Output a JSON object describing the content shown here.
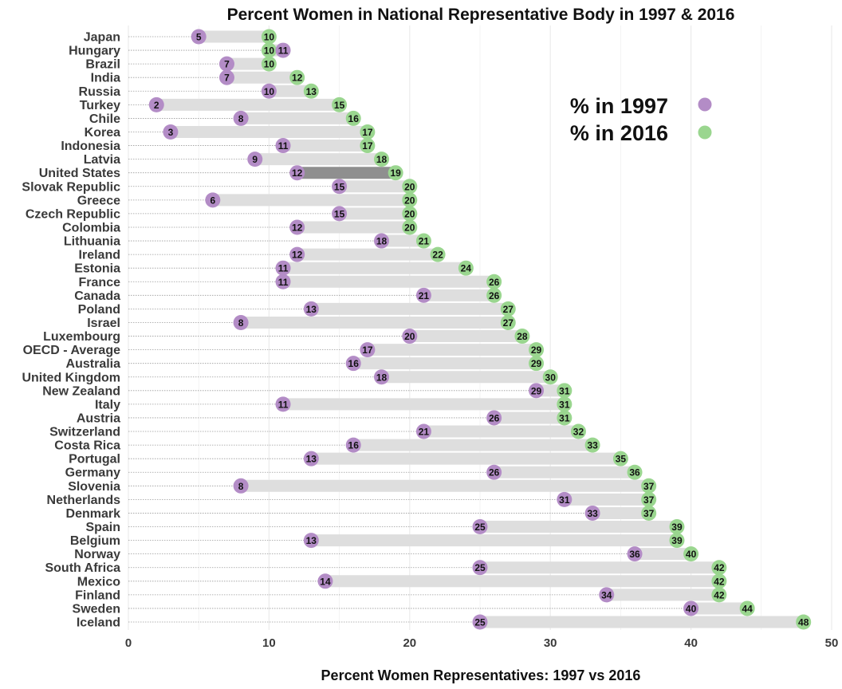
{
  "chart_data": {
    "type": "dumbbell",
    "title": "Percent Women in National Representative Body in 1997 & 2016",
    "xlabel": "Percent Women Representatives: 1997 vs 2016",
    "ylabel": "",
    "xlim": [
      0,
      50
    ],
    "xticks": [
      0,
      10,
      20,
      30,
      40,
      50
    ],
    "grid": true,
    "legend_position": "top-right",
    "highlight": "United States",
    "series": [
      {
        "name": "% in 1997",
        "color": "#b38cc6"
      },
      {
        "name": "% in 2016",
        "color": "#9ad68f"
      }
    ],
    "countries": [
      {
        "country": "Japan",
        "y1997": 5,
        "y2016": 10
      },
      {
        "country": "Hungary",
        "y1997": 11,
        "y2016": 10
      },
      {
        "country": "Brazil",
        "y1997": 7,
        "y2016": 10
      },
      {
        "country": "India",
        "y1997": 7,
        "y2016": 12
      },
      {
        "country": "Russia",
        "y1997": 10,
        "y2016": 13
      },
      {
        "country": "Turkey",
        "y1997": 2,
        "y2016": 15
      },
      {
        "country": "Chile",
        "y1997": 8,
        "y2016": 16
      },
      {
        "country": "Korea",
        "y1997": 3,
        "y2016": 17
      },
      {
        "country": "Indonesia",
        "y1997": 11,
        "y2016": 17
      },
      {
        "country": "Latvia",
        "y1997": 9,
        "y2016": 18
      },
      {
        "country": "United States",
        "y1997": 12,
        "y2016": 19
      },
      {
        "country": "Slovak Republic",
        "y1997": 15,
        "y2016": 20
      },
      {
        "country": "Greece",
        "y1997": 6,
        "y2016": 20
      },
      {
        "country": "Czech Republic",
        "y1997": 15,
        "y2016": 20
      },
      {
        "country": "Colombia",
        "y1997": 12,
        "y2016": 20
      },
      {
        "country": "Lithuania",
        "y1997": 18,
        "y2016": 21
      },
      {
        "country": "Ireland",
        "y1997": 12,
        "y2016": 22
      },
      {
        "country": "Estonia",
        "y1997": 11,
        "y2016": 24
      },
      {
        "country": "France",
        "y1997": 11,
        "y2016": 26
      },
      {
        "country": "Canada",
        "y1997": 21,
        "y2016": 26
      },
      {
        "country": "Poland",
        "y1997": 13,
        "y2016": 27
      },
      {
        "country": "Israel",
        "y1997": 8,
        "y2016": 27
      },
      {
        "country": "Luxembourg",
        "y1997": 20,
        "y2016": 28
      },
      {
        "country": "OECD - Average",
        "y1997": 17,
        "y2016": 29
      },
      {
        "country": "Australia",
        "y1997": 16,
        "y2016": 29
      },
      {
        "country": "United Kingdom",
        "y1997": 18,
        "y2016": 30
      },
      {
        "country": "New Zealand",
        "y1997": 29,
        "y2016": 31
      },
      {
        "country": "Italy",
        "y1997": 11,
        "y2016": 31
      },
      {
        "country": "Austria",
        "y1997": 26,
        "y2016": 31
      },
      {
        "country": "Switzerland",
        "y1997": 21,
        "y2016": 32
      },
      {
        "country": "Costa Rica",
        "y1997": 16,
        "y2016": 33
      },
      {
        "country": "Portugal",
        "y1997": 13,
        "y2016": 35
      },
      {
        "country": "Germany",
        "y1997": 26,
        "y2016": 36
      },
      {
        "country": "Slovenia",
        "y1997": 8,
        "y2016": 37
      },
      {
        "country": "Netherlands",
        "y1997": 31,
        "y2016": 37
      },
      {
        "country": "Denmark",
        "y1997": 33,
        "y2016": 37
      },
      {
        "country": "Spain",
        "y1997": 25,
        "y2016": 39
      },
      {
        "country": "Belgium",
        "y1997": 13,
        "y2016": 39
      },
      {
        "country": "Norway",
        "y1997": 36,
        "y2016": 40
      },
      {
        "country": "South Africa",
        "y1997": 25,
        "y2016": 42
      },
      {
        "country": "Mexico",
        "y1997": 14,
        "y2016": 42
      },
      {
        "country": "Finland",
        "y1997": 34,
        "y2016": 42
      },
      {
        "country": "Sweden",
        "y1997": 40,
        "y2016": 44
      },
      {
        "country": "Iceland",
        "y1997": 25,
        "y2016": 48
      }
    ]
  }
}
